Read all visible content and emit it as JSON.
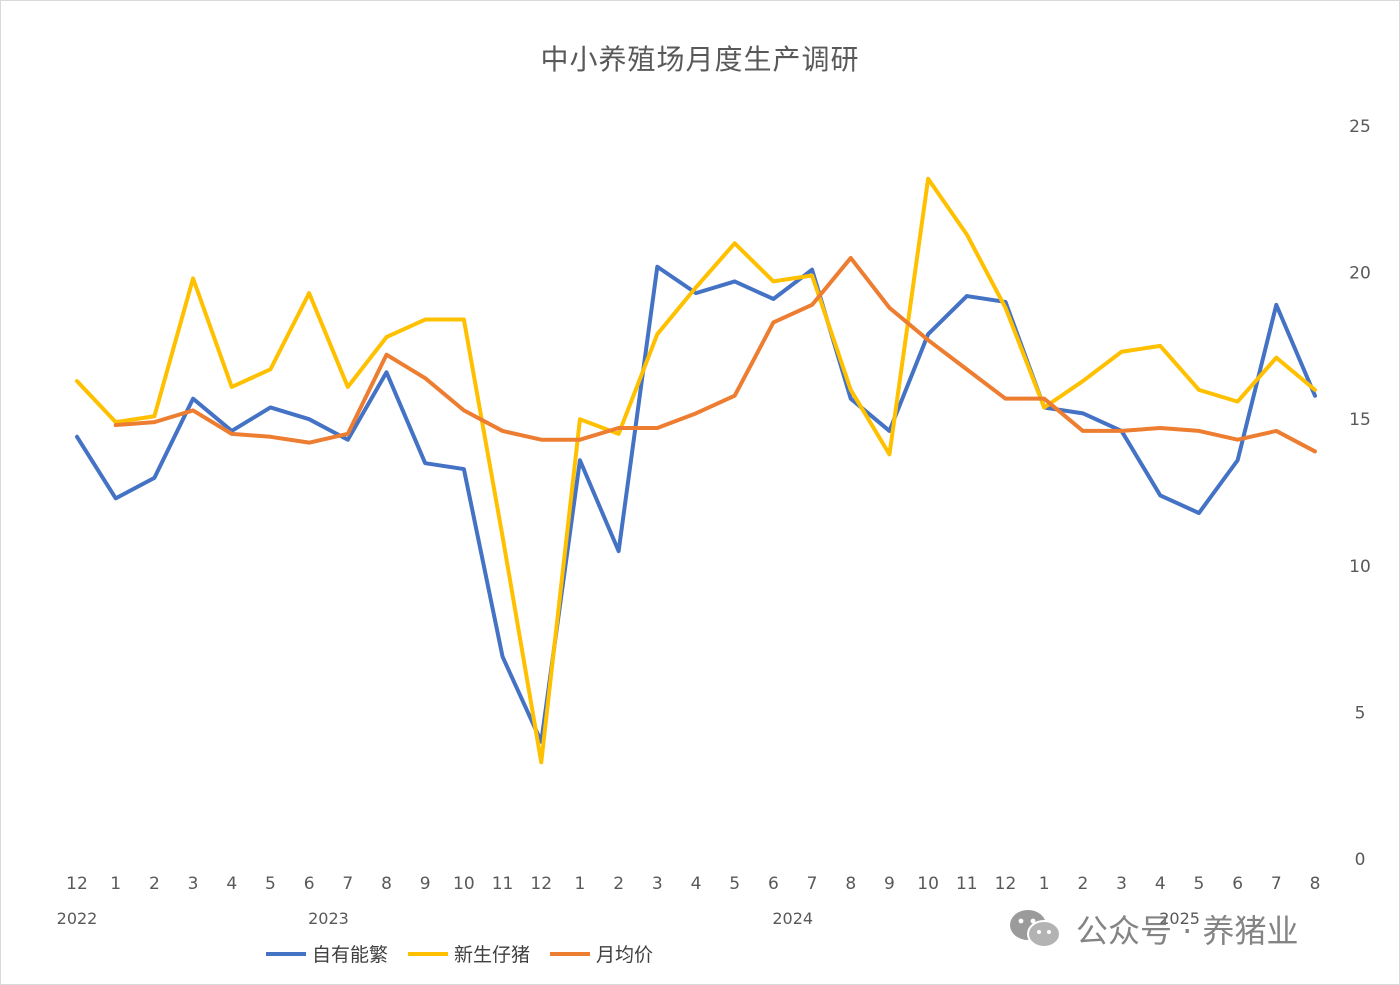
{
  "title": "中小养殖场月度生产调研",
  "watermark": "公众号 · 养猪业",
  "chart_data": {
    "type": "line",
    "title": "中小养殖场月度生产调研",
    "categories": [
      "12",
      "1",
      "2",
      "3",
      "4",
      "5",
      "6",
      "7",
      "8",
      "9",
      "10",
      "11",
      "12",
      "1",
      "2",
      "3",
      "4",
      "5",
      "6",
      "7",
      "8",
      "9",
      "10",
      "11",
      "12",
      "1",
      "2",
      "3",
      "4",
      "5",
      "6",
      "7",
      "8"
    ],
    "year_labels": [
      {
        "label": "2022",
        "index": 0
      },
      {
        "label": "2023",
        "index": 6.5
      },
      {
        "label": "2024",
        "index": 18.5
      },
      {
        "label": "2025",
        "index": 28.5
      }
    ],
    "ylim": [
      0,
      25
    ],
    "yticks": [
      0,
      5,
      10,
      15,
      20,
      25
    ],
    "y_axis_side": "right",
    "grid": false,
    "legend": "bottom",
    "series": [
      {
        "name": "自有能繁",
        "color": "#4472C4",
        "values": [
          14.4,
          12.3,
          13.0,
          15.7,
          14.6,
          15.4,
          15.0,
          14.3,
          16.6,
          13.5,
          13.3,
          6.9,
          4.0,
          13.6,
          10.5,
          20.2,
          19.3,
          19.7,
          19.1,
          20.1,
          15.7,
          14.6,
          17.9,
          19.2,
          19.0,
          15.4,
          15.2,
          14.6,
          12.4,
          11.8,
          13.6,
          18.9,
          15.8
        ]
      },
      {
        "name": "新生仔猪",
        "color": "#FFC000",
        "values": [
          16.3,
          14.9,
          15.1,
          19.8,
          16.1,
          16.7,
          19.3,
          16.1,
          17.8,
          18.4,
          18.4,
          11.0,
          3.3,
          15.0,
          14.5,
          17.9,
          19.5,
          21.0,
          19.7,
          19.9,
          16.0,
          13.8,
          23.2,
          21.3,
          18.8,
          15.4,
          16.3,
          17.3,
          17.5,
          16.0,
          15.6,
          17.1,
          16.0
        ]
      },
      {
        "name": "月均价",
        "color": "#ED7D31",
        "values": [
          null,
          14.8,
          14.9,
          15.3,
          14.5,
          14.4,
          14.2,
          14.5,
          17.2,
          16.4,
          15.3,
          14.6,
          14.3,
          14.3,
          14.7,
          14.7,
          15.2,
          15.8,
          18.3,
          18.9,
          20.5,
          18.8,
          17.7,
          16.7,
          15.7,
          15.7,
          14.6,
          14.6,
          14.7,
          14.6,
          14.3,
          14.6,
          13.9
        ]
      }
    ]
  }
}
